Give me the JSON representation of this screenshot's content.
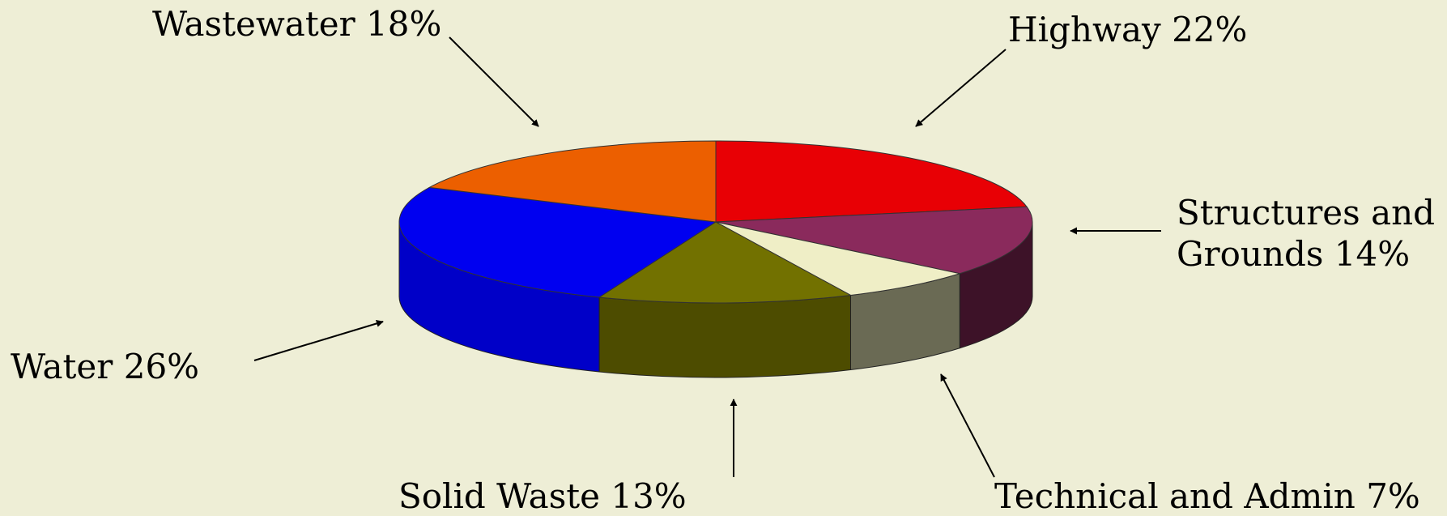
{
  "chart_data": {
    "type": "pie",
    "style": "3d",
    "legend": "none",
    "categories": [
      "Highway",
      "Structures and Grounds",
      "Technical and Admin",
      "Solid Waste",
      "Water",
      "Wastewater"
    ],
    "values": [
      22,
      14,
      7,
      13,
      26,
      18
    ],
    "unit": "%",
    "colors": [
      "#e80005",
      "#8a2a5c",
      "#efeec6",
      "#727100",
      "#0000f0",
      "#ec5f00"
    ],
    "side_colors": [
      "#8a0003",
      "#3d1228",
      "#6a6a54",
      "#4d4c00",
      "#0000c8",
      "#9a3c00"
    ],
    "labels": [
      {
        "lines": [
          "Highway 22%"
        ]
      },
      {
        "lines": [
          "Structures and",
          "Grounds 14%"
        ]
      },
      {
        "lines": [
          "Technical and Admin 7%"
        ]
      },
      {
        "lines": [
          "Solid Waste 13%"
        ]
      },
      {
        "lines": [
          "Water 26%"
        ]
      },
      {
        "lines": [
          "Wastewater 18%"
        ]
      }
    ]
  }
}
